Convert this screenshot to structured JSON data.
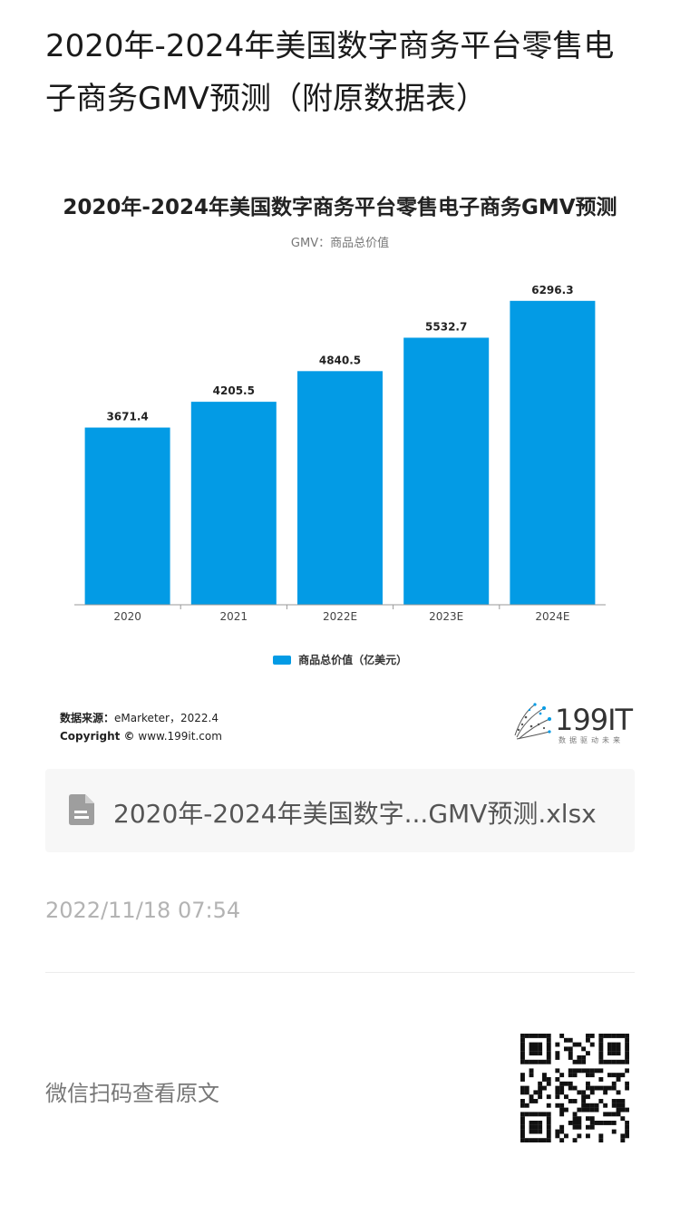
{
  "page": {
    "title": "2020年-2024年美国数字商务平台零售电子商务GMV预测（附原数据表）"
  },
  "chart_data": {
    "type": "bar",
    "title": "2020年-2024年美国数字商务平台零售电子商务GMV预测",
    "subtitle": "GMV：商品总价值",
    "categories": [
      "2020",
      "2021",
      "2022E",
      "2023E",
      "2024E"
    ],
    "series": [
      {
        "name": "商品总价值（亿美元）",
        "values": [
          3671.4,
          4205.5,
          4840.5,
          5532.7,
          6296.3
        ],
        "color": "#039be5"
      }
    ],
    "ylim": [
      0,
      6800
    ],
    "grid": false,
    "legend": "bottom"
  },
  "source": {
    "label": "数据来源：",
    "value": "eMarketer，2022.4",
    "copyright_label": "Copyright ©",
    "copyright_value": "www.199it.com"
  },
  "logo": {
    "text": "199IT",
    "tagline": "数据驱动未来"
  },
  "attachment": {
    "icon": "file-icon",
    "name": "2020年-2024年美国数字...GMV预测.xlsx"
  },
  "timestamp": "2022/11/18 07:54",
  "qr": {
    "label": "微信扫码查看原文",
    "icon": "qr-code-icon"
  }
}
